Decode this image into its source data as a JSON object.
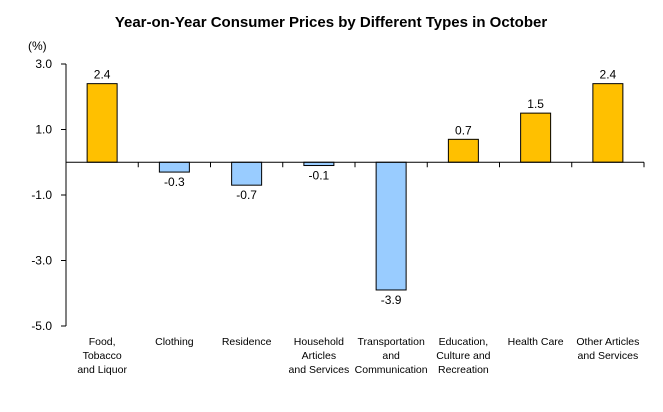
{
  "chart_data": {
    "type": "bar",
    "title": "Year-on-Year Consumer Prices by Different Types in October",
    "unit_label": "(%)",
    "ylim": [
      -5.0,
      3.0
    ],
    "yticks": [
      "3.0",
      "1.0",
      "-1.0",
      "-3.0",
      "-5.0"
    ],
    "ytick_values": [
      3.0,
      1.0,
      -1.0,
      -3.0,
      -5.0
    ],
    "grid": false,
    "legend": "none",
    "categories": [
      [
        "Food,",
        "Tobacco",
        "and Liquor"
      ],
      [
        "Clothing"
      ],
      [
        "Residence"
      ],
      [
        "Household",
        "Articles",
        "and Services"
      ],
      [
        "Transportation",
        "and",
        "Communication"
      ],
      [
        "Education,",
        "Culture and",
        "Recreation"
      ],
      [
        "Health Care"
      ],
      [
        "Other Articles",
        "and Services"
      ]
    ],
    "values": [
      2.4,
      -0.3,
      -0.7,
      -0.1,
      -3.9,
      0.7,
      1.5,
      2.4
    ],
    "value_labels": [
      "2.4",
      "-0.3",
      "-0.7",
      "-0.1",
      "-3.9",
      "0.7",
      "1.5",
      "2.4"
    ],
    "colors": {
      "positive_fill": "#FFC000",
      "negative_fill": "#99CCFF",
      "bar_stroke": "#000000",
      "axis": "#000000"
    }
  }
}
